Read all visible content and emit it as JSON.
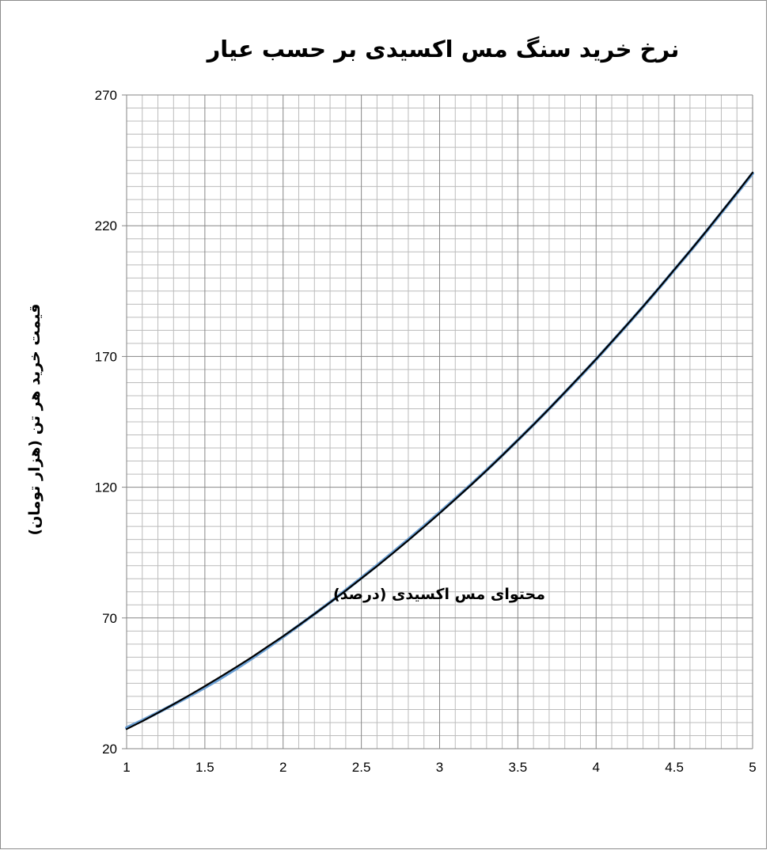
{
  "chart_data": {
    "type": "line",
    "title": "نرخ خرید سنگ مس اکسیدی بر حسب عیار",
    "xlabel": "محتوای مس اکسیدی (درصد)",
    "ylabel": "قیمت خرید هر تن (هزار تومان)",
    "xlim": [
      1,
      5
    ],
    "ylim": [
      20,
      270
    ],
    "x_ticks": [
      "1",
      "1.5",
      "2",
      "2.5",
      "3",
      "3.5",
      "4",
      "4.5",
      "5"
    ],
    "y_ticks": [
      "20",
      "70",
      "120",
      "170",
      "220",
      "270"
    ],
    "grid": true,
    "legend": "none",
    "series": [
      {
        "color": "#000000",
        "x": [
          1,
          1.1,
          1.2,
          1.3,
          1.4,
          1.5,
          1.6,
          1.7,
          1.8,
          1.9,
          2,
          2.1,
          2.2,
          2.3,
          2.4,
          2.5,
          2.6,
          2.7,
          2.8,
          2.9,
          3,
          3.1,
          3.2,
          3.3,
          3.4,
          3.5,
          3.6,
          3.7,
          3.8,
          3.9,
          4,
          4.1,
          4.2,
          4.3,
          4.4,
          4.5,
          4.6,
          4.7,
          4.8,
          4.9,
          5
        ],
        "values": [
          27.5,
          30.5,
          33.7,
          37,
          40.4,
          43.9,
          47.5,
          51.2,
          55,
          59,
          63,
          67.2,
          71.5,
          75.9,
          80.4,
          85.1,
          89.8,
          94.7,
          99.7,
          104.8,
          110,
          115.4,
          120.8,
          126.4,
          132.1,
          138,
          143.9,
          150,
          156.3,
          162.6,
          169,
          175.6,
          182.3,
          189.1,
          196.1,
          203.2,
          210.3,
          217.6,
          225.1,
          232.6,
          240.3
        ]
      },
      {
        "color": "#6a9fd4",
        "x": [
          1,
          1.1,
          1.2,
          1.3,
          1.4,
          1.5,
          1.6,
          1.7,
          1.8,
          1.9,
          2,
          2.1,
          2.2,
          2.3,
          2.4,
          2.5,
          2.6,
          2.7,
          2.8,
          2.9,
          3,
          3.1,
          3.2,
          3.3,
          3.4,
          3.5,
          3.6,
          3.7,
          3.8,
          3.9,
          4,
          4.1,
          4.2,
          4.3,
          4.4,
          4.5,
          4.6,
          4.7,
          4.8,
          4.9,
          5
        ],
        "values": [
          28,
          30.8,
          33.8,
          36.9,
          40.1,
          43.4,
          46.9,
          50.6,
          54.5,
          58.6,
          62.8,
          67.1,
          71.5,
          76,
          80.6,
          85.3,
          90.1,
          95,
          100,
          105.1,
          110.3,
          115.6,
          121,
          126.5,
          132.2,
          138,
          143.9,
          150,
          156.2,
          162.5,
          168.9,
          175.5,
          182.2,
          189,
          196,
          203.1,
          210.2,
          217.5,
          224.9,
          232.4,
          240
        ]
      }
    ]
  }
}
